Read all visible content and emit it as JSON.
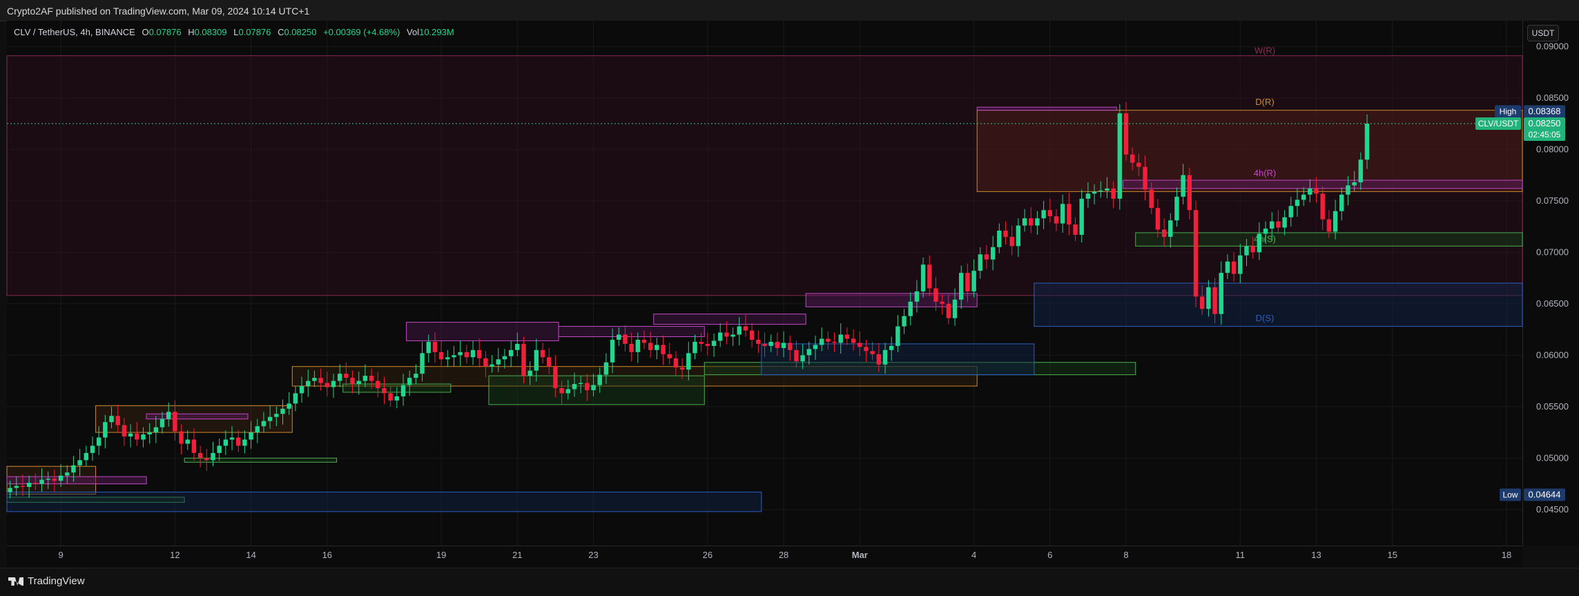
{
  "header": {
    "publisher": "Crypto2AF published on TradingView.com, Mar 09, 2024 10:14 UTC+1"
  },
  "legend": {
    "symbol": "CLV / TetherUS, 4h, BINANCE",
    "open_label": "O",
    "open": "0.07876",
    "high_label": "H",
    "high": "0.08309",
    "low_label": "L",
    "low": "0.07876",
    "close_label": "C",
    "close": "0.08250",
    "change": "+0.00369 (+4.68%)",
    "vol_label": "Vol",
    "vol": "10.293M"
  },
  "currency_button": "USDT",
  "footer": {
    "brand": "TradingView"
  },
  "colors": {
    "up": "#22d68f",
    "down": "#f0203a",
    "grid": "#1a1a1a"
  },
  "chart_data": {
    "type": "candlestick",
    "symbol": "CLV/USDT",
    "timeframe": "4h",
    "y_ticks": [
      "0.09000",
      "0.08500",
      "0.08000",
      "0.07500",
      "0.07000",
      "0.06500",
      "0.06000",
      "0.05500",
      "0.05000",
      "0.04500"
    ],
    "y_range": [
      0.0415,
      0.0925
    ],
    "x_ticks": [
      {
        "label": "9",
        "idx": 8
      },
      {
        "label": "12",
        "idx": 26
      },
      {
        "label": "14",
        "idx": 38
      },
      {
        "label": "16",
        "idx": 50
      },
      {
        "label": "19",
        "idx": 68
      },
      {
        "label": "21",
        "idx": 80
      },
      {
        "label": "23",
        "idx": 92
      },
      {
        "label": "26",
        "idx": 110
      },
      {
        "label": "28",
        "idx": 122
      },
      {
        "label": "Mar",
        "idx": 134
      },
      {
        "label": "4",
        "idx": 152
      },
      {
        "label": "6",
        "idx": 164
      },
      {
        "label": "8",
        "idx": 176
      },
      {
        "label": "11",
        "idx": 194
      },
      {
        "label": "13",
        "idx": 206
      },
      {
        "label": "15",
        "idx": 218
      },
      {
        "label": "18",
        "idx": 236
      }
    ],
    "bars_total": 239,
    "badges": {
      "high": {
        "label": "High",
        "value": "0.08368"
      },
      "last": {
        "label": "CLV/USDT",
        "value": "0.08250",
        "countdown": "02:45:05"
      },
      "low": {
        "label": "Low",
        "value": "0.04644"
      }
    },
    "level_labels": [
      {
        "text": "W(R)",
        "color": "#8a2a56",
        "price": 0.0891
      },
      {
        "text": "D(R)",
        "color": "#d08a2a",
        "price": 0.0841
      },
      {
        "text": "4h(R)",
        "color": "#c14ac4",
        "price": 0.0772
      },
      {
        "text": "4h(S)",
        "color": "#4caf50",
        "price": 0.0708
      },
      {
        "text": "D(S)",
        "color": "#2b5fc4",
        "price": 0.0631
      }
    ],
    "zones": [
      {
        "x0": 0,
        "x1": 239,
        "top": 0.0891,
        "bottom": 0.0658,
        "fill": "#3a0f26",
        "stroke": "#8a2a56",
        "op": 0.35
      },
      {
        "x0": 153,
        "x1": 239,
        "top": 0.0838,
        "bottom": 0.0759,
        "fill": "#6b2616",
        "stroke": "#d08a2a",
        "op": 0.32
      },
      {
        "x0": 176,
        "x1": 239,
        "top": 0.077,
        "bottom": 0.0762,
        "fill": "#5a1a5c",
        "stroke": "#c14ac4",
        "op": 0.5
      },
      {
        "x0": 178,
        "x1": 239,
        "top": 0.0719,
        "bottom": 0.0706,
        "fill": "#143a16",
        "stroke": "#4caf50",
        "op": 0.5
      },
      {
        "x0": 162,
        "x1": 239,
        "top": 0.067,
        "bottom": 0.0628,
        "fill": "#0f2448",
        "stroke": "#2b5fc4",
        "op": 0.5
      },
      {
        "x0": 153,
        "x1": 175,
        "top": 0.0841,
        "bottom": 0.0838,
        "fill": "#5a1a5c",
        "stroke": "#c14ac4",
        "op": 0.5
      },
      {
        "x0": 126,
        "x1": 153,
        "top": 0.066,
        "bottom": 0.0647,
        "fill": "#5a1a5c",
        "stroke": "#c14ac4",
        "op": 0.5
      },
      {
        "x0": 102,
        "x1": 126,
        "top": 0.064,
        "bottom": 0.063,
        "fill": "#5a1a5c",
        "stroke": "#c14ac4",
        "op": 0.35
      },
      {
        "x0": 63,
        "x1": 87,
        "top": 0.0632,
        "bottom": 0.0614,
        "fill": "#5a1a5c",
        "stroke": "#c14ac4",
        "op": 0.35
      },
      {
        "x0": 87,
        "x1": 110,
        "top": 0.0628,
        "bottom": 0.0618,
        "fill": "#5a1a5c",
        "stroke": "#c14ac4",
        "op": 0.35
      },
      {
        "x0": 45,
        "x1": 153,
        "top": 0.0589,
        "bottom": 0.057,
        "fill": "#4a2a10",
        "stroke": "#d08a2a",
        "op": 0.3
      },
      {
        "x0": 110,
        "x1": 178,
        "top": 0.0593,
        "bottom": 0.0581,
        "fill": "#143a16",
        "stroke": "#4caf50",
        "op": 0.45
      },
      {
        "x0": 119,
        "x1": 162,
        "top": 0.0611,
        "bottom": 0.0581,
        "fill": "#0f2448",
        "stroke": "#2b5fc4",
        "op": 0.45
      },
      {
        "x0": 76,
        "x1": 110,
        "top": 0.058,
        "bottom": 0.0552,
        "fill": "#143a16",
        "stroke": "#4caf50",
        "op": 0.45
      },
      {
        "x0": 53,
        "x1": 70,
        "top": 0.0572,
        "bottom": 0.0564,
        "fill": "#143a16",
        "stroke": "#4caf50",
        "op": 0.45
      },
      {
        "x0": 14,
        "x1": 45,
        "top": 0.0551,
        "bottom": 0.0525,
        "fill": "#4a2a10",
        "stroke": "#d08a2a",
        "op": 0.35
      },
      {
        "x0": 22,
        "x1": 38,
        "top": 0.0543,
        "bottom": 0.0538,
        "fill": "#5a1a5c",
        "stroke": "#c14ac4",
        "op": 0.5
      },
      {
        "x0": 28,
        "x1": 52,
        "top": 0.05,
        "bottom": 0.0496,
        "fill": "#143a16",
        "stroke": "#4caf50",
        "op": 0.5
      },
      {
        "x0": 0,
        "x1": 14,
        "top": 0.0492,
        "bottom": 0.0465,
        "fill": "#4a2a10",
        "stroke": "#d08a2a",
        "op": 0.35
      },
      {
        "x0": 0,
        "x1": 22,
        "top": 0.0482,
        "bottom": 0.0475,
        "fill": "#5a1a5c",
        "stroke": "#c14ac4",
        "op": 0.5
      },
      {
        "x0": 0,
        "x1": 28,
        "top": 0.0462,
        "bottom": 0.0457,
        "fill": "#143a16",
        "stroke": "#4caf50",
        "op": 0.5
      },
      {
        "x0": 0,
        "x1": 119,
        "top": 0.0467,
        "bottom": 0.0448,
        "fill": "#0f2448",
        "stroke": "#2b5fc4",
        "op": 0.45
      }
    ],
    "closes": [
      0.0471,
      0.0473,
      0.0472,
      0.0476,
      0.0475,
      0.0479,
      0.048,
      0.0478,
      0.0483,
      0.0486,
      0.0493,
      0.0498,
      0.0505,
      0.0512,
      0.052,
      0.0535,
      0.0541,
      0.0532,
      0.0521,
      0.0524,
      0.0518,
      0.0523,
      0.0525,
      0.053,
      0.0538,
      0.0545,
      0.0526,
      0.0514,
      0.0518,
      0.0505,
      0.05,
      0.0498,
      0.0505,
      0.0512,
      0.0518,
      0.052,
      0.0512,
      0.0518,
      0.0525,
      0.0531,
      0.0536,
      0.054,
      0.0543,
      0.0548,
      0.0553,
      0.0563,
      0.057,
      0.0575,
      0.0578,
      0.0573,
      0.0569,
      0.0575,
      0.0582,
      0.0578,
      0.0572,
      0.0575,
      0.058,
      0.0575,
      0.0568,
      0.0563,
      0.0556,
      0.056,
      0.0571,
      0.0578,
      0.0582,
      0.0602,
      0.0613,
      0.0603,
      0.0596,
      0.0598,
      0.06,
      0.0603,
      0.0598,
      0.0605,
      0.0597,
      0.0589,
      0.0591,
      0.0596,
      0.0599,
      0.0605,
      0.0611,
      0.058,
      0.0585,
      0.0605,
      0.0598,
      0.0589,
      0.0568,
      0.0563,
      0.0567,
      0.0572,
      0.0573,
      0.0566,
      0.0571,
      0.0581,
      0.0593,
      0.0615,
      0.062,
      0.0611,
      0.0603,
      0.0615,
      0.0612,
      0.0605,
      0.061,
      0.0601,
      0.0597,
      0.0588,
      0.0586,
      0.0602,
      0.0613,
      0.0611,
      0.0609,
      0.0614,
      0.0622,
      0.0618,
      0.062,
      0.0628,
      0.0624,
      0.0615,
      0.0611,
      0.0609,
      0.0613,
      0.0607,
      0.0612,
      0.0605,
      0.0594,
      0.06,
      0.0606,
      0.061,
      0.0616,
      0.0613,
      0.0612,
      0.062,
      0.0616,
      0.0612,
      0.0608,
      0.0604,
      0.0601,
      0.0591,
      0.0605,
      0.0609,
      0.0628,
      0.0638,
      0.0652,
      0.0662,
      0.0688,
      0.0665,
      0.0652,
      0.065,
      0.0636,
      0.0654,
      0.068,
      0.0662,
      0.0682,
      0.0698,
      0.0693,
      0.0705,
      0.0721,
      0.0715,
      0.0706,
      0.0726,
      0.0733,
      0.0726,
      0.0733,
      0.0741,
      0.0735,
      0.0728,
      0.0747,
      0.0727,
      0.0717,
      0.0752,
      0.0757,
      0.0759,
      0.076,
      0.0762,
      0.0752,
      0.0835,
      0.0795,
      0.0787,
      0.0783,
      0.0761,
      0.0743,
      0.0722,
      0.0715,
      0.0731,
      0.0754,
      0.0775,
      0.0741,
      0.0657,
      0.0645,
      0.0666,
      0.064,
      0.068,
      0.0691,
      0.0679,
      0.0697,
      0.0706,
      0.07,
      0.0718,
      0.0723,
      0.073,
      0.0724,
      0.0734,
      0.0745,
      0.0751,
      0.0756,
      0.0762,
      0.0757,
      0.0732,
      0.072,
      0.074,
      0.0756,
      0.0765,
      0.0768,
      0.079,
      0.0825
    ]
  }
}
